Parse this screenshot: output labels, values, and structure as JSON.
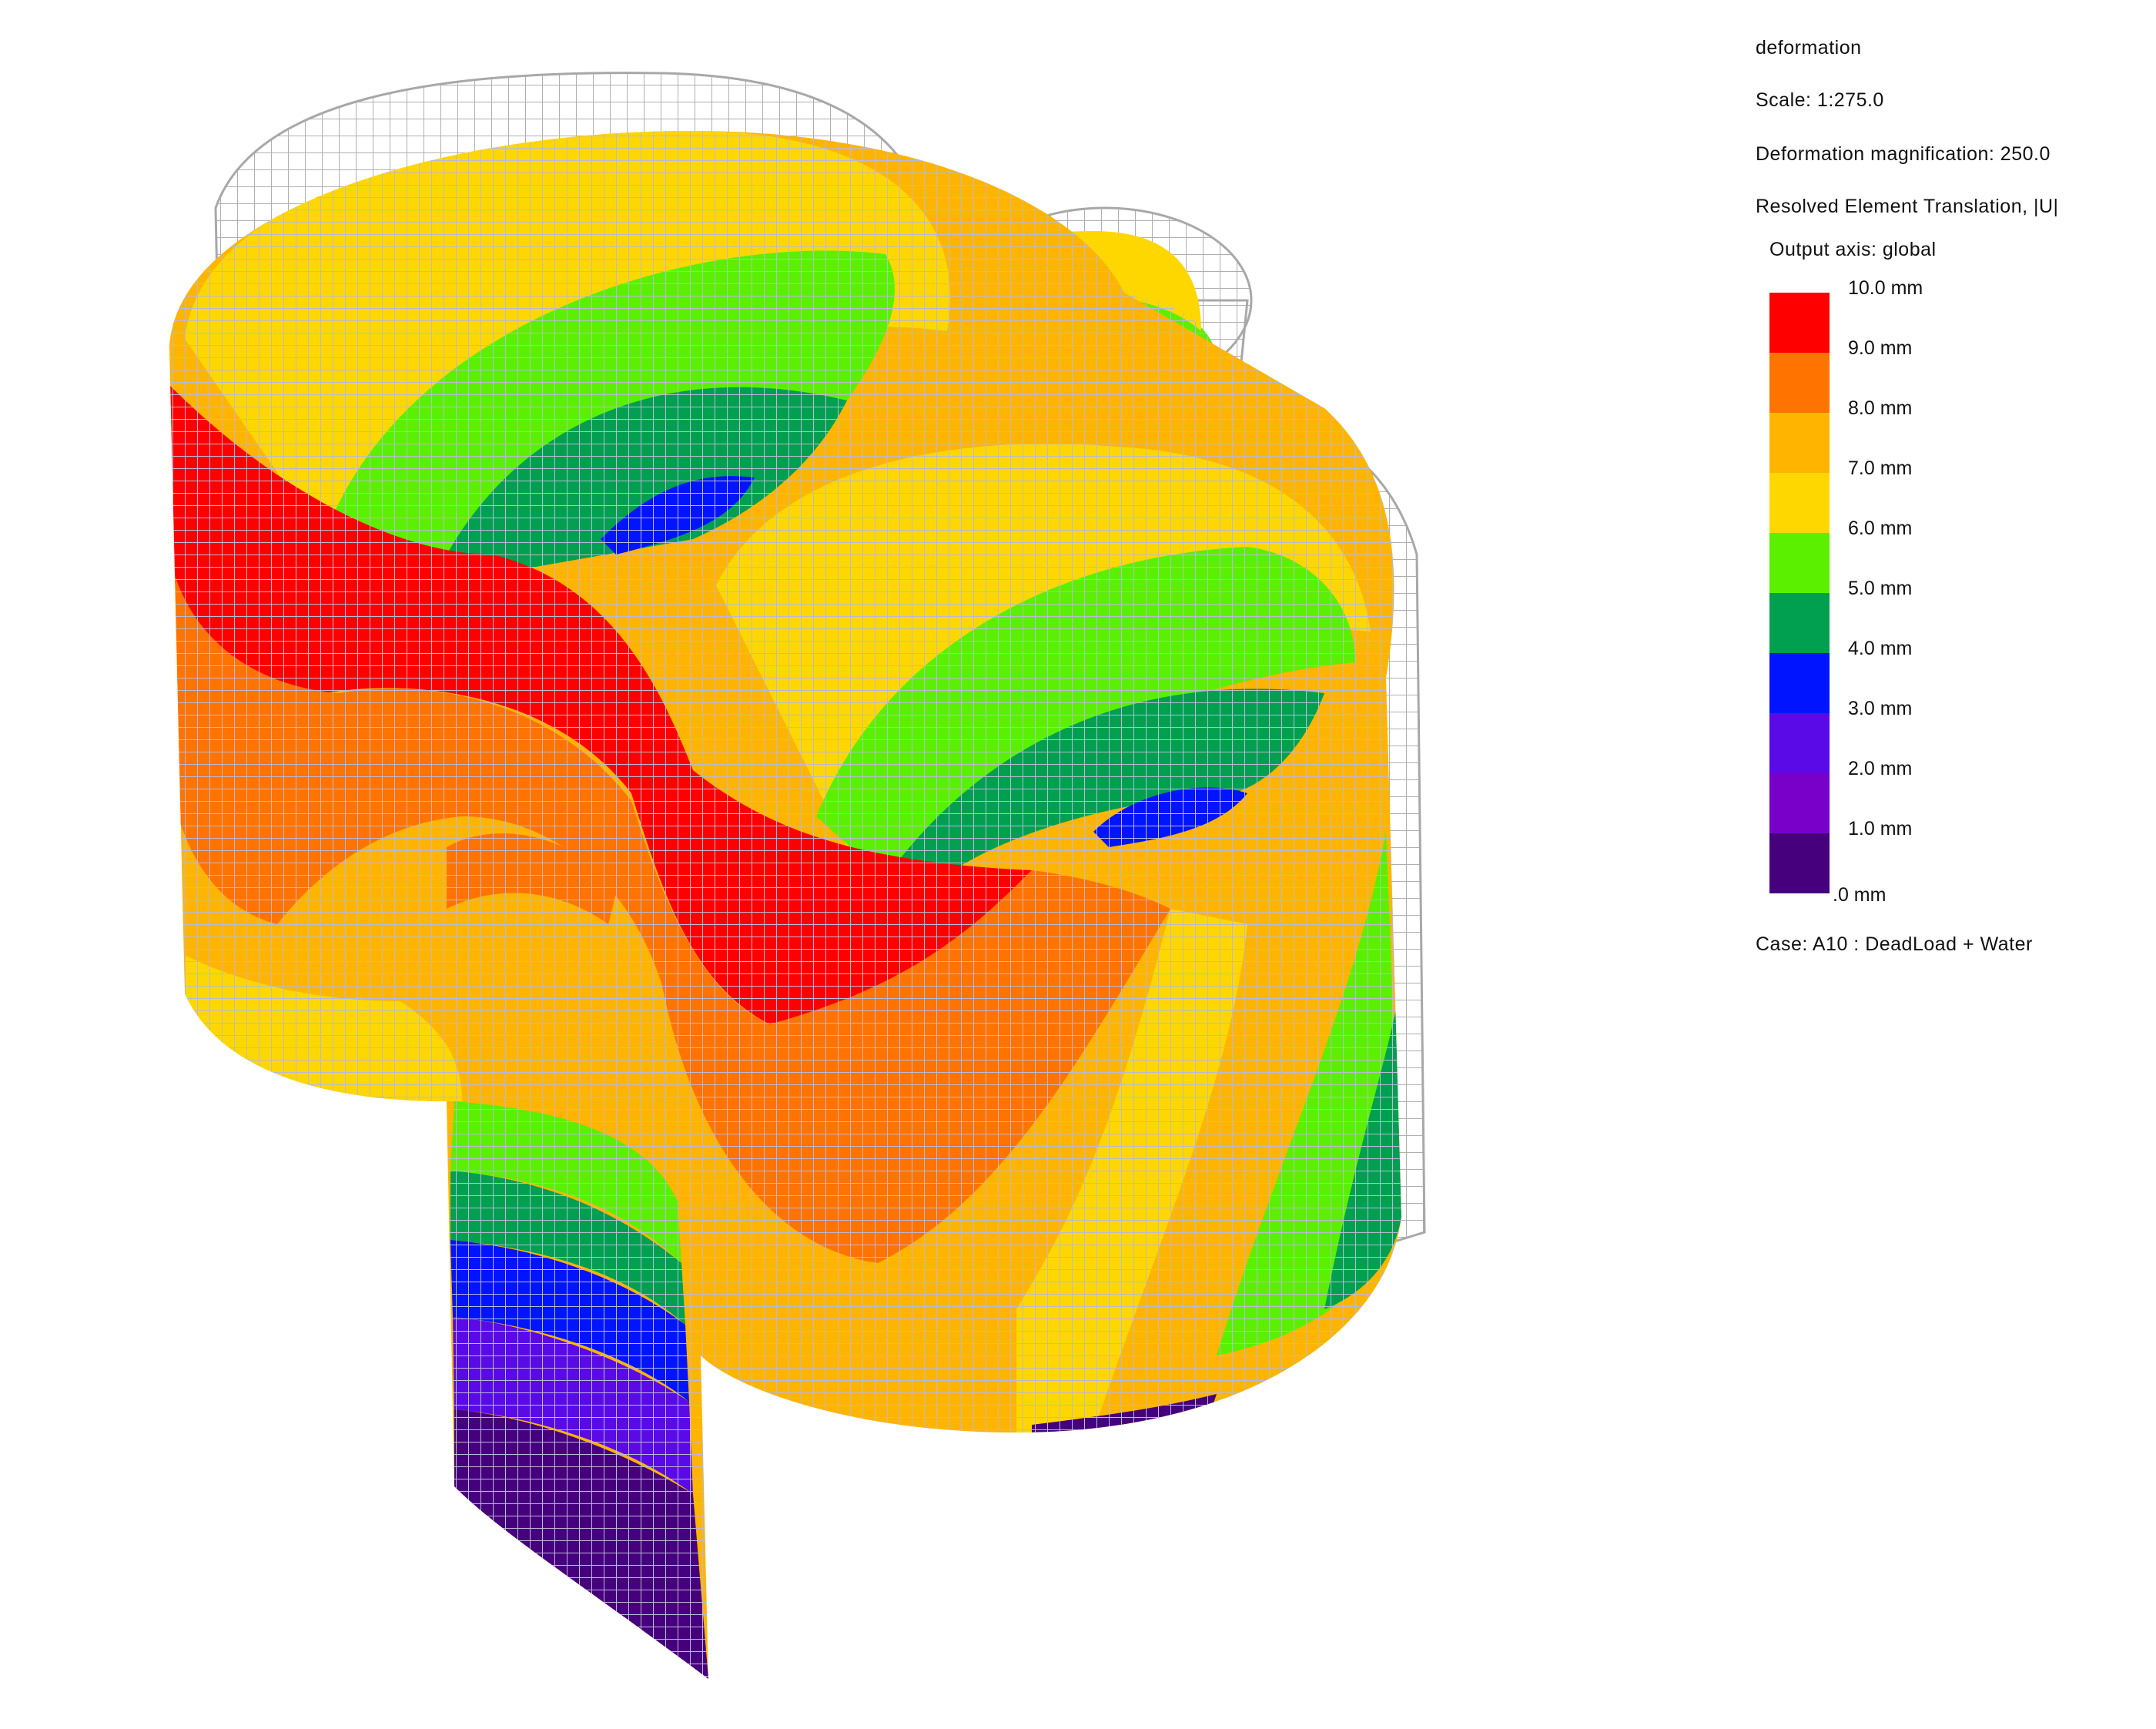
{
  "legend": {
    "title": "deformation",
    "scale": "Scale: 1:275.0",
    "magnification": "Deformation magnification: 250.0",
    "quantity": "Resolved Element Translation, |U|",
    "output_axis": "Output axis: global",
    "case": "Case: A10 : DeadLoad + Water",
    "bands": [
      {
        "color": "#ff0000"
      },
      {
        "color": "#ff7300"
      },
      {
        "color": "#ffb400"
      },
      {
        "color": "#ffd700"
      },
      {
        "color": "#5af000"
      },
      {
        "color": "#00a050"
      },
      {
        "color": "#0014ff"
      },
      {
        "color": "#5a0ae6"
      },
      {
        "color": "#7800c8"
      },
      {
        "color": "#46007d"
      }
    ],
    "ticks": [
      "10.0 mm",
      "9.0 mm",
      "8.0 mm",
      "7.0 mm",
      "6.0 mm",
      "5.0 mm",
      "4.0 mm",
      "3.0 mm",
      "2.0 mm",
      "1.0 mm",
      ".0 mm"
    ]
  }
}
